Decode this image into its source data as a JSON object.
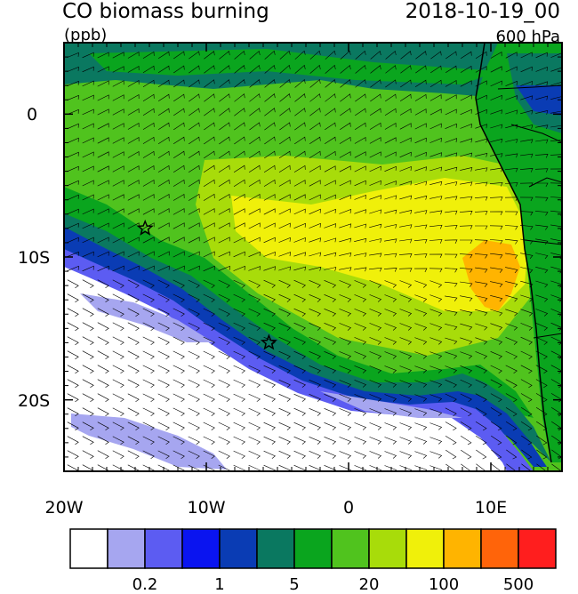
{
  "title": "CO biomass burning",
  "datetime": "2018-10-19_00",
  "units": "(ppb)",
  "level": "600 hPa",
  "lat_labels": [
    "0",
    "10S",
    "20S"
  ],
  "lon_labels": [
    "20W",
    "10W",
    "0",
    "10E"
  ],
  "colorbar": {
    "colors": [
      "#ffffff",
      "#a6a6f0",
      "#5c5cf2",
      "#0a14f0",
      "#0a3cb4",
      "#0a7860",
      "#0aa51e",
      "#50c31e",
      "#a8dc0a",
      "#f0f00a",
      "#ffb400",
      "#ff640a",
      "#ff1e1e"
    ],
    "tick_labels": [
      "0.2",
      "1",
      "5",
      "20",
      "100",
      "500"
    ]
  },
  "markers": [
    {
      "name": "star-1",
      "lon": -14.3,
      "lat": -8.0
    },
    {
      "name": "star-2",
      "lon": -5.6,
      "lat": -16.0
    }
  ],
  "map_extent": {
    "lon": [
      -20,
      15
    ],
    "lat": [
      -25,
      5
    ]
  }
}
